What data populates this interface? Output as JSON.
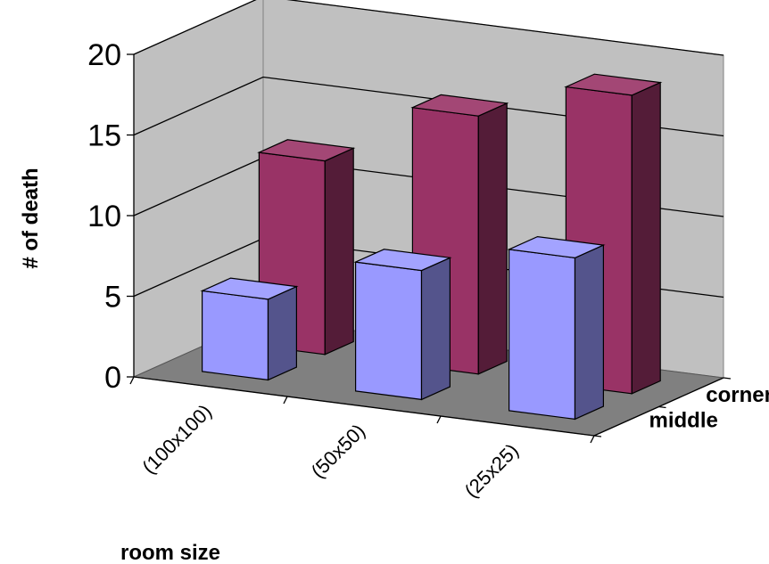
{
  "chart_data": {
    "type": "bar",
    "subtype": "3d-clustered-column",
    "title": "",
    "xlabel": "room size",
    "ylabel": "# of death",
    "categories": [
      "(100x100)",
      "(50x50)",
      "(25x25)"
    ],
    "series": [
      {
        "name": "middle",
        "values": [
          5,
          8,
          10
        ],
        "color": "#9999ff"
      },
      {
        "name": "corner",
        "values": [
          12,
          16,
          18.5
        ],
        "color": "#993366"
      }
    ],
    "ylim": [
      0,
      20
    ],
    "yticks": [
      "0",
      "5",
      "10",
      "15",
      "20"
    ],
    "grid": true,
    "wall_color": "#c0c0c0",
    "floor_color": "#808080"
  }
}
